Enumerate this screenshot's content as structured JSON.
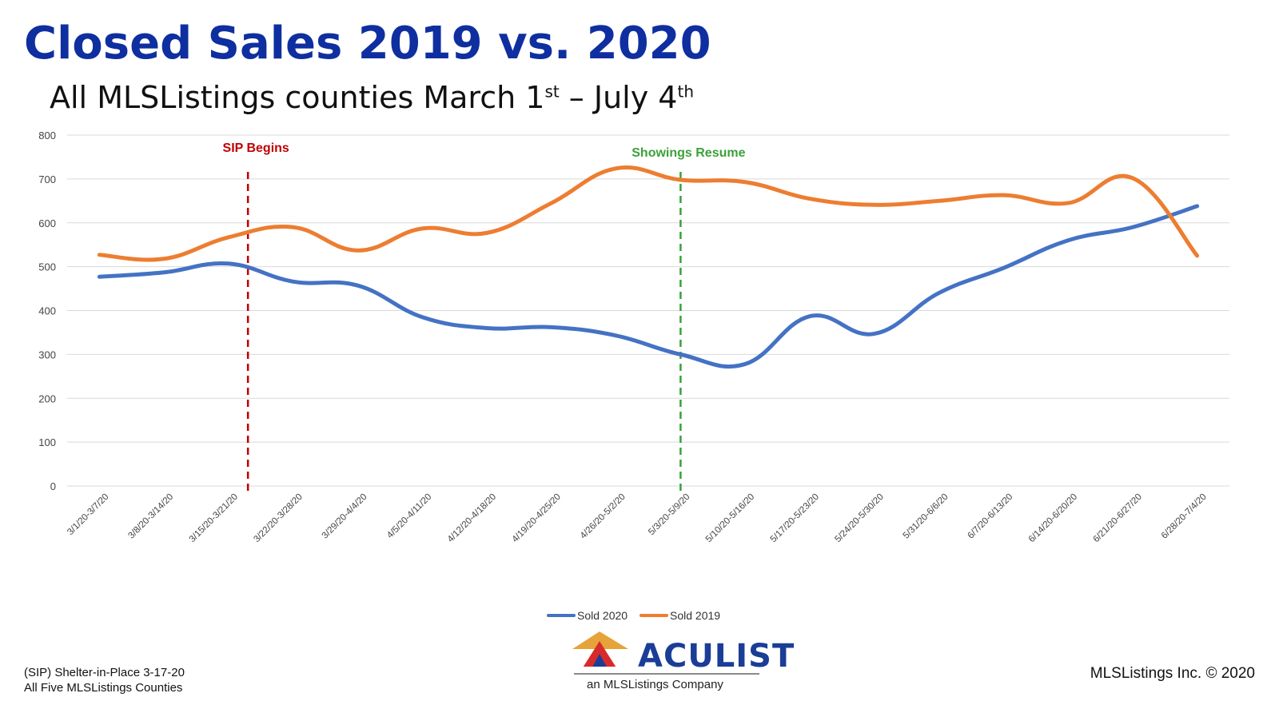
{
  "title": "Closed Sales 2019 vs. 2020",
  "subtitle": {
    "prefix": "All MLSListings counties March 1",
    "sup1": "st",
    "middle": " – July 4",
    "sup2": "th"
  },
  "footer": {
    "left_line1": "(SIP) Shelter-in-Place 3-17-20",
    "left_line2": "All Five MLSListings Counties",
    "right": "MLSListings Inc. © 2020"
  },
  "logo": {
    "brand": "ACULIST",
    "tagline": "an MLSListings Company",
    "colors": {
      "roof": "#e6a33a",
      "frame": "#d72b2b",
      "inner": "#1a3d96"
    }
  },
  "chart_data": {
    "type": "line",
    "categories": [
      "3/1/20-3/7/20",
      "3/8/20-3/14/20",
      "3/15/20-3/21/20",
      "3/22/20-3/28/20",
      "3/29/20-4/4/20",
      "4/5/20-4/11/20",
      "4/12/20-4/18/20",
      "4/19/20-4/25/20",
      "4/26/20-5/2/20",
      "5/3/20-5/9/20",
      "5/10/20-5/16/20",
      "5/17/20-5/23/20",
      "5/24/20-5/30/20",
      "5/31/20-6/6/20",
      "6/7/20-6/13/20",
      "6/14/20-6/20/20",
      "6/21/20-6/27/20",
      "6/28/20-7/4/20"
    ],
    "series": [
      {
        "name": "Sold 2020",
        "color": "#4472c4",
        "values": [
          477,
          487,
          507,
          466,
          457,
          385,
          360,
          362,
          343,
          300,
          278,
          387,
          347,
          440,
          497,
          560,
          590,
          638
        ]
      },
      {
        "name": "Sold 2019",
        "color": "#ed7d31",
        "values": [
          527,
          518,
          567,
          590,
          537,
          587,
          577,
          645,
          724,
          698,
          693,
          655,
          641,
          650,
          663,
          645,
          702,
          525
        ]
      }
    ],
    "ylim": [
      0,
      800
    ],
    "yticks": [
      0,
      100,
      200,
      300,
      400,
      500,
      600,
      700,
      800
    ],
    "grid": true,
    "legend_position": "bottom",
    "annotations": [
      {
        "label": "SIP Begins",
        "color": "#c00000",
        "at_category": 2.3
      },
      {
        "label": "Showings Resume",
        "color": "#3aa13a",
        "at_category": 9.0
      }
    ]
  }
}
